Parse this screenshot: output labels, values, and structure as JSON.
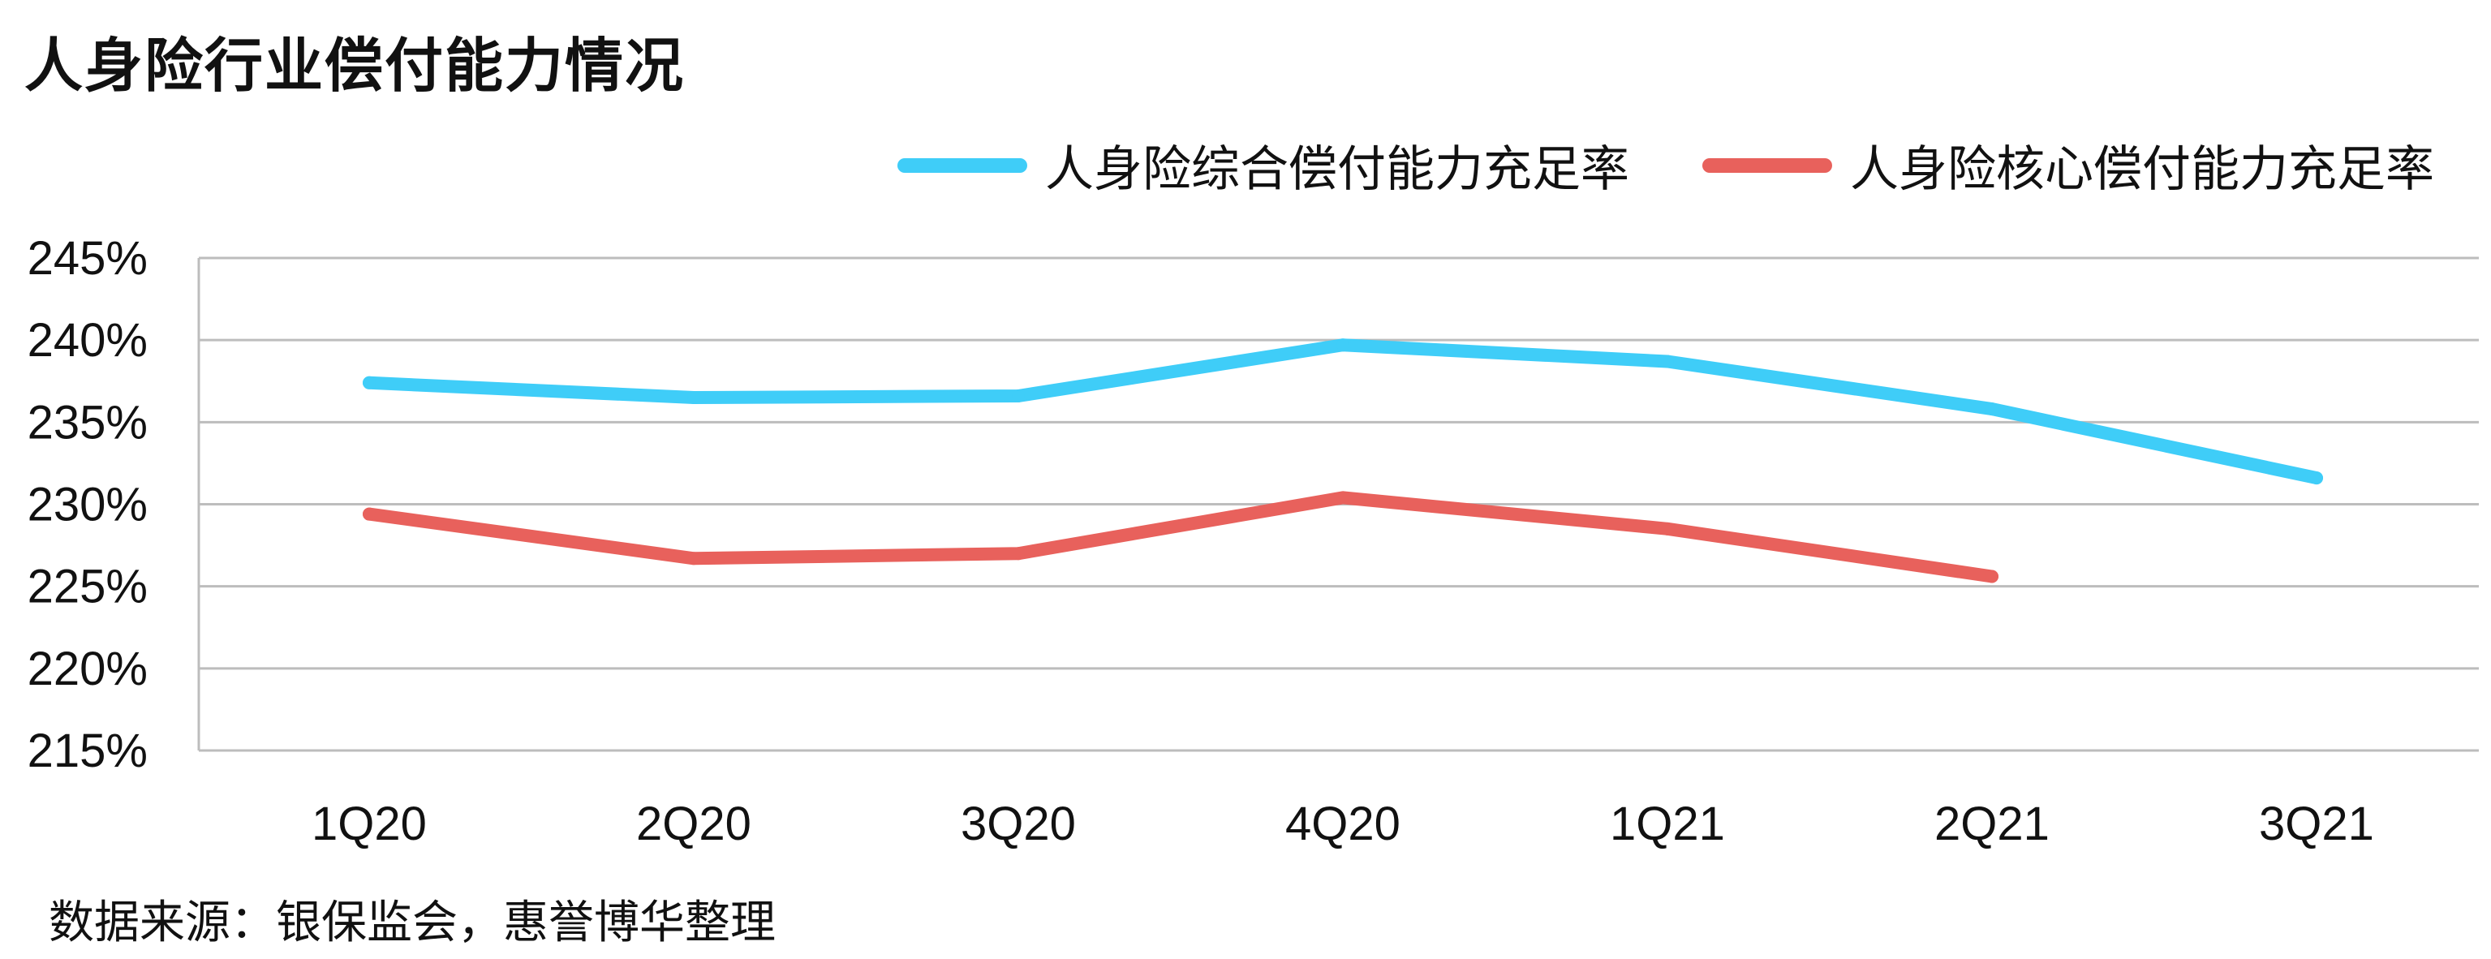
{
  "title": "人身险行业偿付能力情况",
  "source": "数据来源：银保监会，惠誉博华整理",
  "chart_data": {
    "type": "line",
    "title": "人身险行业偿付能力情况",
    "xlabel": "",
    "ylabel": "",
    "categories": [
      "1Q20",
      "2Q20",
      "3Q20",
      "4Q20",
      "1Q21",
      "2Q21",
      "3Q21"
    ],
    "y_ticks": [
      "215%",
      "220%",
      "225%",
      "230%",
      "235%",
      "240%",
      "245%"
    ],
    "ylim": [
      215,
      245
    ],
    "grid": "horizontal",
    "legend_position": "top-right",
    "series": [
      {
        "name": "人身险综合偿付能力充足率",
        "color": "#3fcdf8",
        "values": [
          237.4,
          236.5,
          236.6,
          239.7,
          238.7,
          235.8,
          231.6
        ]
      },
      {
        "name": "人身险核心偿付能力充足率",
        "color": "#e8615c",
        "values": [
          229.4,
          226.7,
          227.0,
          230.4,
          228.5,
          225.6,
          null
        ]
      }
    ]
  }
}
